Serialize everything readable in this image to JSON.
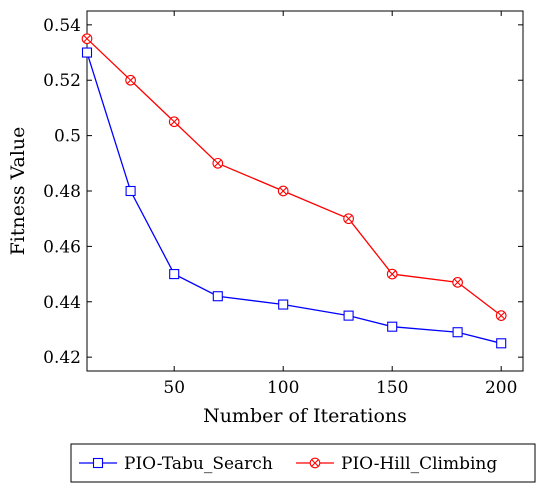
{
  "chart_data": {
    "type": "line",
    "title": "",
    "xlabel": "Number of Iterations",
    "ylabel": "Fitness Value",
    "xlim": [
      10,
      210
    ],
    "ylim": [
      0.415,
      0.545
    ],
    "xticks": [
      50,
      100,
      150,
      200
    ],
    "yticks": [
      0.42,
      0.44,
      0.46,
      0.48,
      0.5,
      0.52,
      0.54
    ],
    "ytick_labels": [
      "0.42",
      "0.44",
      "0.46",
      "0.48",
      "0.5",
      "0.52",
      "0.54"
    ],
    "grid": false,
    "legend_position": "bottom-outside",
    "series": [
      {
        "name": "PIO-Tabu_Search",
        "color": "#0000ff",
        "marker": "square",
        "x": [
          10,
          30,
          50,
          70,
          100,
          130,
          150,
          180,
          200
        ],
        "y": [
          0.53,
          0.48,
          0.45,
          0.442,
          0.439,
          0.435,
          0.431,
          0.429,
          0.425
        ]
      },
      {
        "name": "PIO-Hill_Climbing",
        "color": "#ff0000",
        "marker": "circle-x",
        "x": [
          10,
          30,
          50,
          70,
          100,
          130,
          150,
          180,
          200
        ],
        "y": [
          0.535,
          0.52,
          0.505,
          0.49,
          0.48,
          0.47,
          0.45,
          0.447,
          0.435
        ]
      }
    ]
  }
}
